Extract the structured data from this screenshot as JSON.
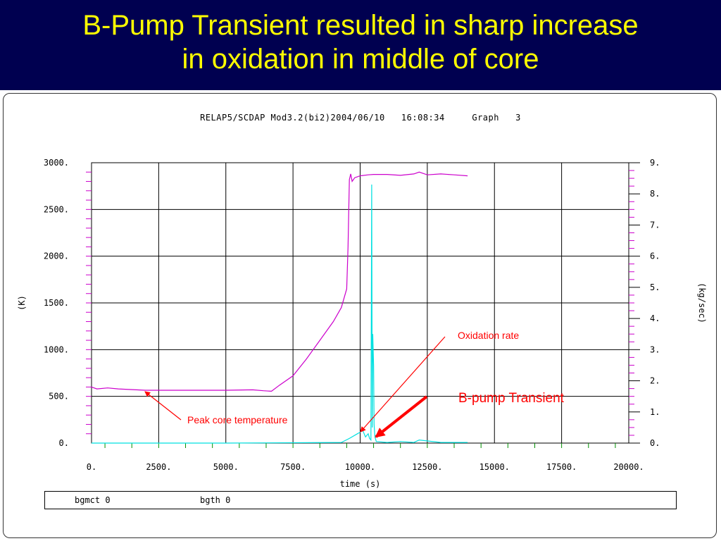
{
  "slide": {
    "title_line1": "B-Pump Transient resulted in sharp increase",
    "title_line2": "in oxidation in middle of core"
  },
  "plot_header": "RELAP5/SCDAP Mod3.2(bi2)2004/06/10   16:08:34     Graph   3",
  "annotations": {
    "oxidation_rate": "Oxidation rate",
    "bpump_transient": "B-pump Transient",
    "peak_core_temperature": "Peak core temperature"
  },
  "legend": {
    "item1": "bgmct 0",
    "item2": "bgth 0"
  },
  "colors": {
    "title_bg": "#000050",
    "title_text": "#ffff00",
    "temperature_series": "#cc00cc",
    "oxidation_series": "#00e0e0",
    "annotation": "#ff0000"
  },
  "chart_data": {
    "type": "line",
    "title": "RELAP5/SCDAP Mod3.2(bi2)2004/06/10   16:08:34     Graph   3",
    "xlabel": "time (s)",
    "ylabel_left": "(K)",
    "ylabel_right": "(kg/sec)",
    "xlim": [
      0,
      20000
    ],
    "ylim_left": [
      0,
      3000
    ],
    "ylim_right": [
      0,
      9
    ],
    "x_ticks": [
      "0.",
      "2500.",
      "5000.",
      "7500.",
      "10000.",
      "12500.",
      "15000.",
      "17500.",
      "20000."
    ],
    "y_left_ticks": [
      "0.",
      "500.",
      "1000.",
      "1500.",
      "2000.",
      "2500.",
      "3000."
    ],
    "y_right_ticks": [
      "0.",
      "1.",
      "2.",
      "3.",
      "4.",
      "5.",
      "6.",
      "7.",
      "8.",
      "9."
    ],
    "grid": true,
    "series": [
      {
        "name": "bgmct 0",
        "axis": "left",
        "x": [
          0,
          200,
          600,
          1000,
          2000,
          3000,
          4000,
          5000,
          6000,
          6400,
          6700,
          7000,
          7500,
          8000,
          8500,
          9000,
          9300,
          9500,
          9550,
          9600,
          9650,
          9700,
          9800,
          10000,
          10300,
          10500,
          11000,
          11500,
          12000,
          12200,
          12500,
          13000,
          13500,
          14000
        ],
        "values": [
          600,
          580,
          590,
          580,
          565,
          565,
          565,
          565,
          570,
          560,
          555,
          620,
          720,
          900,
          1100,
          1300,
          1450,
          1650,
          2100,
          2820,
          2880,
          2800,
          2840,
          2860,
          2870,
          2875,
          2875,
          2865,
          2880,
          2900,
          2870,
          2880,
          2870,
          2860
        ]
      },
      {
        "name": "bgth 0",
        "axis": "right",
        "x": [
          0,
          5000,
          9300,
          9600,
          9900,
          10100,
          10200,
          10300,
          10350,
          10400,
          10430,
          10450,
          10470,
          10500,
          10520,
          10550,
          10600,
          11000,
          11500,
          12000,
          12200,
          13000,
          14000
        ],
        "values": [
          0,
          0,
          0.02,
          0.15,
          0.3,
          0.4,
          0.2,
          0.3,
          0.15,
          0.1,
          8.3,
          0.5,
          3.5,
          2.5,
          0.6,
          0.2,
          0.05,
          0.02,
          0.05,
          0.02,
          0.1,
          0.02,
          0.02
        ]
      }
    ]
  }
}
